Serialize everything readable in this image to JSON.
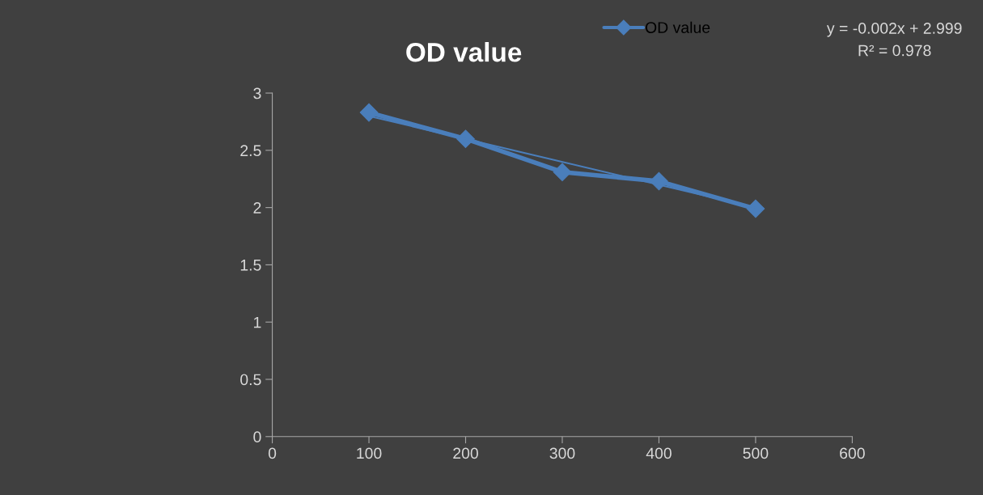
{
  "chart_data": {
    "type": "line",
    "title": "OD value",
    "x": [
      100,
      200,
      300,
      400,
      500
    ],
    "series": [
      {
        "name": "OD value",
        "color": "#4a7ebb",
        "values": [
          2.83,
          2.6,
          2.31,
          2.23,
          1.99
        ]
      },
      {
        "type": "line",
        "color": "#4a7ebb",
        "x": [
          100,
          500
        ],
        "values": [
          2.799,
          1.999
        ],
        "marker": "none"
      }
    ],
    "xlim": [
      0,
      600
    ],
    "xticks": [
      0,
      100,
      200,
      300,
      400,
      500,
      600
    ],
    "ylim": [
      0,
      3
    ],
    "yticks": [
      0,
      0.5,
      1,
      1.5,
      2,
      2.5,
      3
    ],
    "annotations": [
      "y = -0.002x + 2.999",
      "R² = 0.978"
    ],
    "marker": "diamond",
    "line_style": "solid",
    "grid": false,
    "legend": "top right"
  }
}
